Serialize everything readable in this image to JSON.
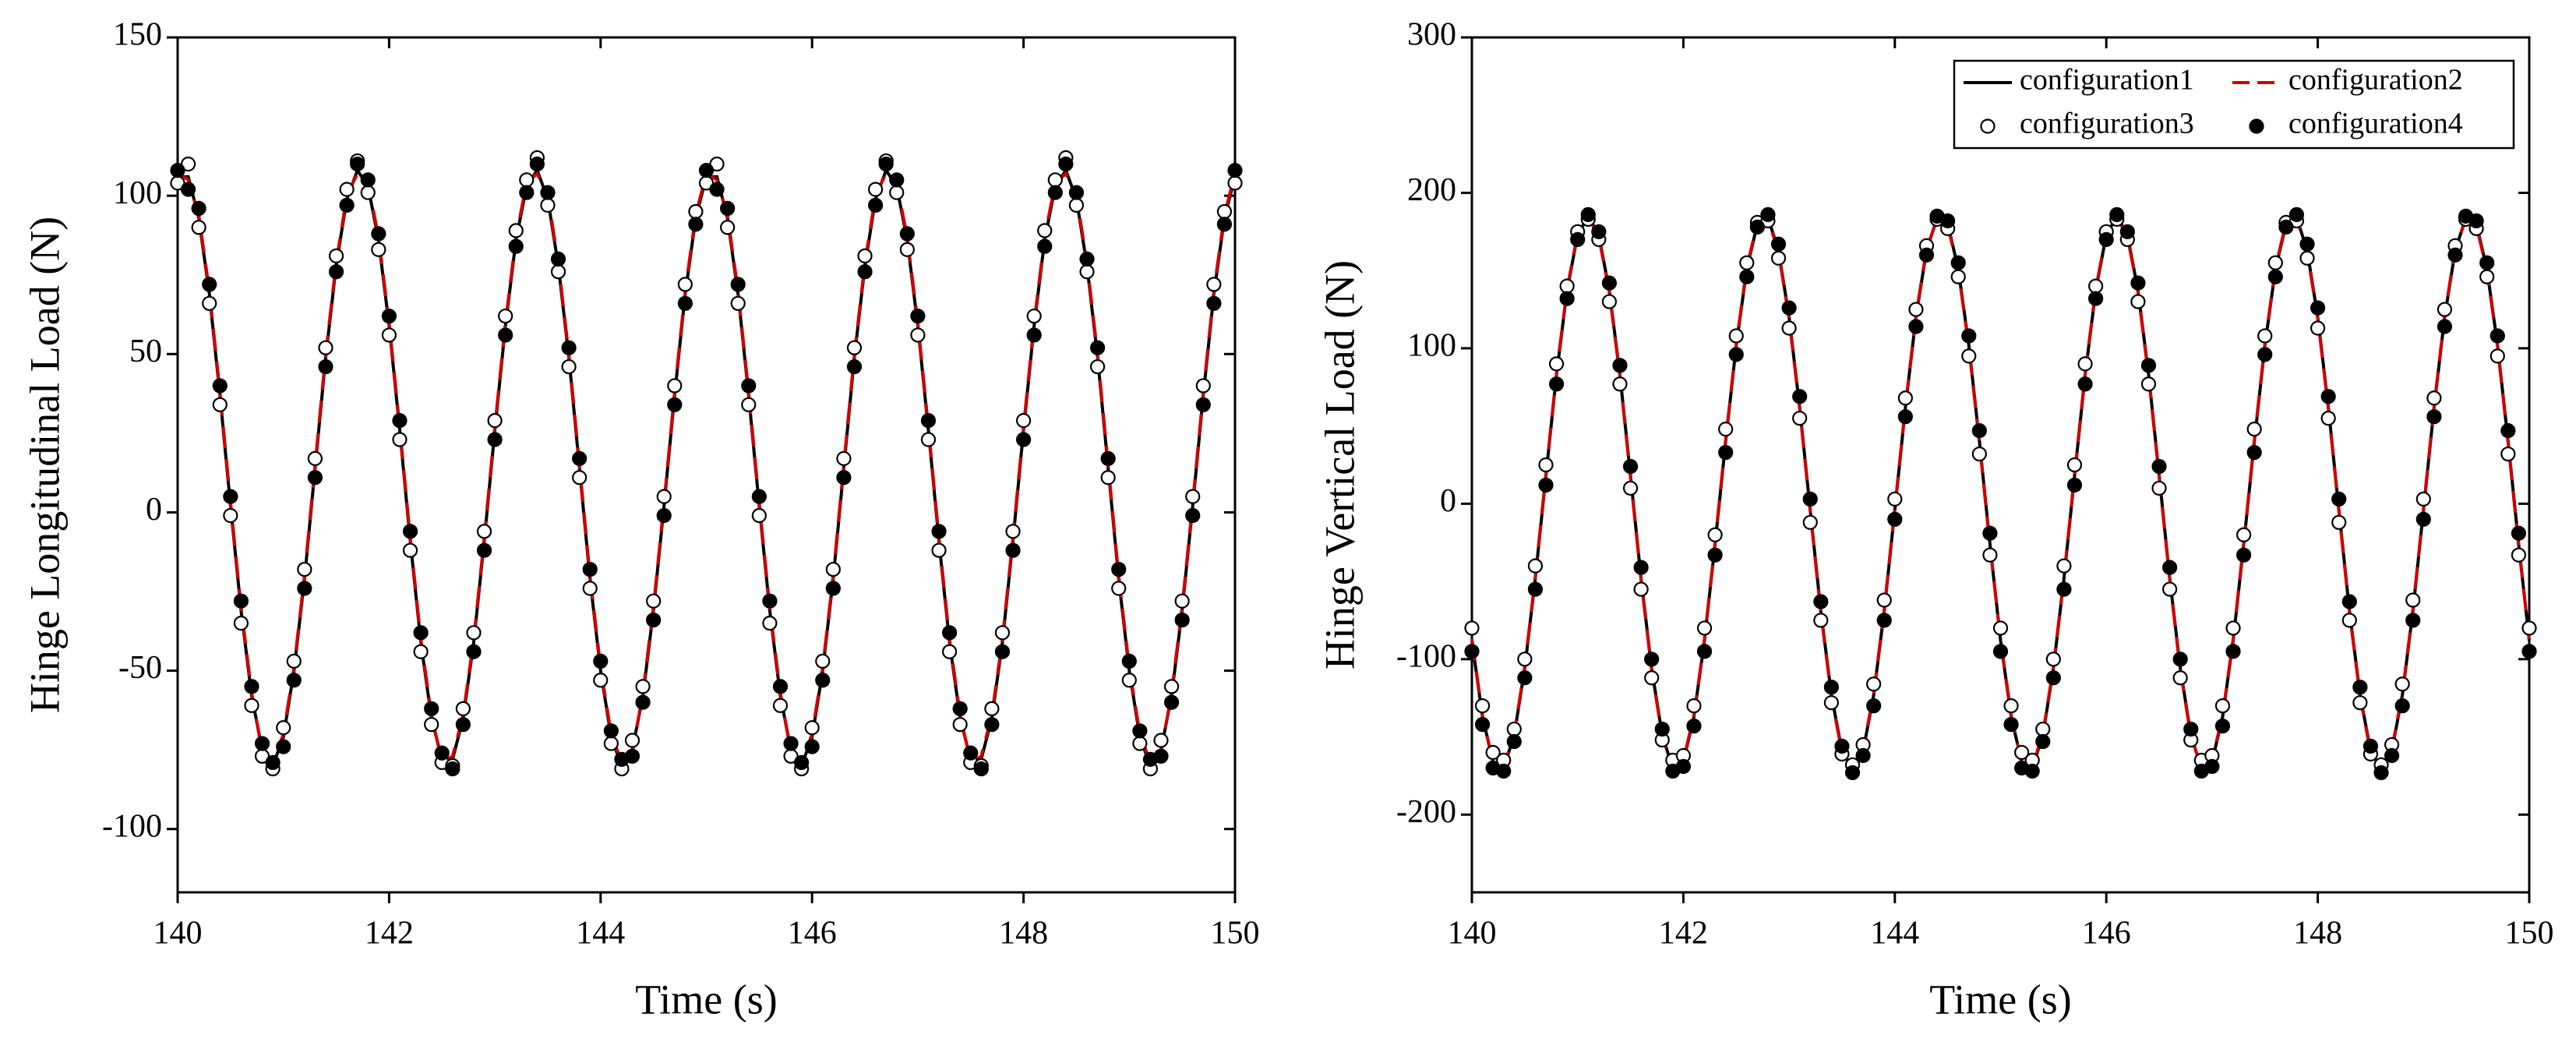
{
  "chart_data": [
    {
      "type": "line",
      "ylabel": "Hinge Longitudinal Load (N)",
      "xlabel": "Time (s)",
      "xlim": [
        140,
        150
      ],
      "xticks": [
        140,
        142,
        144,
        146,
        148,
        150
      ],
      "ylim": [
        -120,
        150
      ],
      "yticks": [
        -100,
        -50,
        0,
        50,
        100,
        150
      ],
      "x": [
        140.0,
        140.1,
        140.2,
        140.3,
        140.4,
        140.5,
        140.6,
        140.7,
        140.8,
        140.9,
        141.0,
        141.1,
        141.2,
        141.3,
        141.4,
        141.5,
        141.6,
        141.7,
        141.8,
        141.9,
        142.0,
        142.1,
        142.2,
        142.3,
        142.4,
        142.5,
        142.6,
        142.7,
        142.8,
        142.9,
        143.0,
        143.1,
        143.2,
        143.3,
        143.4,
        143.5,
        143.6,
        143.7,
        143.8,
        143.9,
        144.0,
        144.1,
        144.2,
        144.3,
        144.4,
        144.5,
        144.6,
        144.7,
        144.8,
        144.9,
        145.0,
        145.1,
        145.2,
        145.3,
        145.4,
        145.5,
        145.6,
        145.7,
        145.8,
        145.9,
        146.0,
        146.1,
        146.2,
        146.3,
        146.4,
        146.5,
        146.6,
        146.7,
        146.8,
        146.9,
        147.0,
        147.1,
        147.2,
        147.3,
        147.4,
        147.5,
        147.6,
        147.7,
        147.8,
        147.9,
        148.0,
        148.1,
        148.2,
        148.3,
        148.4,
        148.5,
        148.6,
        148.7,
        148.8,
        148.9,
        149.0,
        149.1,
        149.2,
        149.3,
        149.4,
        149.5,
        149.6,
        149.7,
        149.8,
        149.9,
        150.0
      ],
      "series": [
        {
          "color": "#000000",
          "style": "solid",
          "values": [
            106,
            106,
            93,
            69,
            37,
            2,
            -31,
            -58,
            -75,
            -80,
            -71,
            -50,
            -21,
            14,
            49,
            78,
            99,
            108,
            103,
            86,
            59,
            26,
            -9,
            -41,
            -65,
            -78,
            -78,
            -65,
            -41,
            -9,
            26,
            59,
            86,
            103,
            108,
            99,
            78,
            49,
            14,
            -21,
            -50,
            -71,
            -80,
            -75,
            -58,
            -31,
            2,
            37,
            69,
            93,
            106,
            106,
            93,
            69,
            37,
            2,
            -31,
            -58,
            -75,
            -80,
            -71,
            -50,
            -21,
            14,
            49,
            78,
            99,
            108,
            103,
            86,
            59,
            26,
            -9,
            -41,
            -65,
            -78,
            -78,
            -65,
            -41,
            -9,
            26,
            59,
            86,
            103,
            108,
            99,
            78,
            49,
            14,
            -21,
            -50,
            -71,
            -80,
            -75,
            -58,
            -31,
            2,
            37,
            69,
            93,
            106
          ]
        },
        {
          "color": "#d00000",
          "style": "dashed",
          "values": [
            107,
            105,
            94,
            70,
            38,
            3,
            -30,
            -57,
            -76,
            -79,
            -70,
            -49,
            -20,
            15,
            50,
            79,
            100,
            107,
            104,
            87,
            60,
            27,
            -8,
            -40,
            -64,
            -79,
            -77,
            -64,
            -40,
            -8,
            27,
            60,
            87,
            104,
            107,
            100,
            79,
            50,
            15,
            -20,
            -49,
            -70,
            -79,
            -76,
            -57,
            -30,
            3,
            38,
            70,
            94,
            107,
            105,
            94,
            70,
            38,
            3,
            -30,
            -57,
            -76,
            -79,
            -70,
            -49,
            -20,
            15,
            50,
            79,
            100,
            107,
            104,
            87,
            60,
            27,
            -8,
            -40,
            -64,
            -79,
            -77,
            -64,
            -40,
            -8,
            27,
            60,
            87,
            104,
            107,
            100,
            79,
            50,
            15,
            -20,
            -49,
            -70,
            -79,
            -76,
            -57,
            -30,
            3,
            38,
            70,
            94,
            107
          ]
        },
        {
          "color": "#000000",
          "style": "open-circle",
          "values": [
            104,
            110,
            90,
            66,
            34,
            -1,
            -35,
            -61,
            -77,
            -81,
            -68,
            -47,
            -18,
            17,
            52,
            81,
            102,
            111,
            101,
            83,
            56,
            23,
            -12,
            -44,
            -67,
            -79,
            -80,
            -62,
            -38,
            -6,
            29,
            62,
            89,
            105,
            112,
            97,
            76,
            46,
            11,
            -24,
            -53,
            -73,
            -81,
            -72,
            -55,
            -28,
            5,
            40,
            72,
            95,
            104,
            110,
            90,
            66,
            34,
            -1,
            -35,
            -61,
            -77,
            -81,
            -68,
            -47,
            -18,
            17,
            52,
            81,
            102,
            111,
            101,
            83,
            56,
            23,
            -12,
            -44,
            -67,
            -79,
            -80,
            -62,
            -38,
            -6,
            29,
            62,
            89,
            105,
            112,
            97,
            76,
            46,
            11,
            -24,
            -53,
            -73,
            -81,
            -72,
            -55,
            -28,
            5,
            40,
            72,
            95,
            104
          ]
        },
        {
          "color": "#000000",
          "style": "filled-circle",
          "values": [
            108,
            102,
            96,
            72,
            40,
            5,
            -28,
            -55,
            -73,
            -79,
            -74,
            -53,
            -24,
            11,
            46,
            76,
            97,
            110,
            105,
            88,
            62,
            29,
            -6,
            -38,
            -62,
            -76,
            -81,
            -67,
            -44,
            -12,
            23,
            56,
            84,
            101,
            110,
            101,
            80,
            52,
            17,
            -18,
            -47,
            -69,
            -78,
            -77,
            -60,
            -34,
            -1,
            34,
            66,
            91,
            108,
            102,
            96,
            72,
            40,
            5,
            -28,
            -55,
            -73,
            -79,
            -74,
            -53,
            -24,
            11,
            46,
            76,
            97,
            110,
            105,
            88,
            62,
            29,
            -6,
            -38,
            -62,
            -76,
            -81,
            -67,
            -44,
            -12,
            23,
            56,
            84,
            101,
            110,
            101,
            80,
            52,
            17,
            -18,
            -47,
            -69,
            -78,
            -77,
            -60,
            -34,
            -1,
            34,
            66,
            91,
            108
          ]
        }
      ]
    },
    {
      "type": "line",
      "ylabel": "Hinge Vertical Load (N)",
      "xlabel": "Time (s)",
      "xlim": [
        140,
        150
      ],
      "xticks": [
        140,
        142,
        144,
        146,
        148,
        150
      ],
      "ylim": [
        -250,
        300
      ],
      "yticks": [
        -200,
        -100,
        0,
        100,
        200,
        300
      ],
      "legend": "upper right",
      "x": [
        140.0,
        140.1,
        140.2,
        140.3,
        140.4,
        140.5,
        140.6,
        140.7,
        140.8,
        140.9,
        141.0,
        141.1,
        141.2,
        141.3,
        141.4,
        141.5,
        141.6,
        141.7,
        141.8,
        141.9,
        142.0,
        142.1,
        142.2,
        142.3,
        142.4,
        142.5,
        142.6,
        142.7,
        142.8,
        142.9,
        143.0,
        143.1,
        143.2,
        143.3,
        143.4,
        143.5,
        143.6,
        143.7,
        143.8,
        143.9,
        144.0,
        144.1,
        144.2,
        144.3,
        144.4,
        144.5,
        144.6,
        144.7,
        144.8,
        144.9,
        145.0,
        145.1,
        145.2,
        145.3,
        145.4,
        145.5,
        145.6,
        145.7,
        145.8,
        145.9,
        146.0,
        146.1,
        146.2,
        146.3,
        146.4,
        146.5,
        146.6,
        146.7,
        146.8,
        146.9,
        147.0,
        147.1,
        147.2,
        147.3,
        147.4,
        147.5,
        147.6,
        147.7,
        147.8,
        147.9,
        148.0,
        148.1,
        148.2,
        148.3,
        148.4,
        148.5,
        148.6,
        148.7,
        148.8,
        148.9,
        149.0,
        149.1,
        149.2,
        149.3,
        149.4,
        149.5,
        149.6,
        149.7,
        149.8,
        149.9,
        150.0
      ],
      "series": [
        {
          "name": "configuration1",
          "color": "#000000",
          "style": "solid",
          "values": [
            -88,
            -137,
            -166,
            -170,
            -149,
            -106,
            -48,
            18,
            83,
            137,
            173,
            185,
            173,
            137,
            83,
            18,
            -48,
            -106,
            -149,
            -170,
            -166,
            -137,
            -88,
            -26,
            40,
            102,
            151,
            180,
            184,
            163,
            120,
            62,
            -4,
            -69,
            -123,
            -159,
            -171,
            -159,
            -123,
            -69,
            -4,
            62,
            120,
            163,
            184,
            180,
            151,
            102,
            40,
            -26,
            -88,
            -137,
            -166,
            -170,
            -149,
            -106,
            -48,
            18,
            83,
            137,
            173,
            185,
            173,
            137,
            83,
            18,
            -48,
            -106,
            -149,
            -170,
            -166,
            -137,
            -88,
            -26,
            40,
            102,
            151,
            180,
            184,
            163,
            120,
            62,
            -4,
            -69,
            -123,
            -159,
            -171,
            -159,
            -123,
            -69,
            -4,
            62,
            120,
            163,
            184,
            180,
            151,
            102,
            40,
            -26,
            -88
          ]
        },
        {
          "name": "configuration2",
          "color": "#d00000",
          "style": "dashed",
          "values": [
            -87,
            -136,
            -167,
            -169,
            -148,
            -105,
            -47,
            19,
            84,
            138,
            174,
            184,
            172,
            136,
            82,
            17,
            -49,
            -107,
            -150,
            -169,
            -165,
            -136,
            -87,
            -25,
            41,
            103,
            152,
            181,
            183,
            162,
            119,
            61,
            -5,
            -70,
            -124,
            -160,
            -170,
            -158,
            -122,
            -68,
            -3,
            63,
            121,
            164,
            183,
            179,
            150,
            101,
            39,
            -27,
            -87,
            -136,
            -167,
            -169,
            -148,
            -105,
            -47,
            19,
            84,
            138,
            174,
            184,
            172,
            136,
            82,
            17,
            -49,
            -107,
            -150,
            -169,
            -165,
            -136,
            -87,
            -25,
            41,
            103,
            152,
            181,
            183,
            162,
            119,
            61,
            -5,
            -70,
            -124,
            -160,
            -170,
            -158,
            -122,
            -68,
            -3,
            63,
            121,
            164,
            183,
            179,
            150,
            101,
            39,
            -27,
            -87
          ]
        },
        {
          "name": "configuration3",
          "color": "#000000",
          "style": "open-circle",
          "values": [
            -80,
            -130,
            -160,
            -165,
            -145,
            -100,
            -40,
            25,
            90,
            140,
            175,
            183,
            170,
            130,
            77,
            10,
            -55,
            -112,
            -152,
            -165,
            -162,
            -130,
            -80,
            -20,
            48,
            108,
            155,
            181,
            182,
            158,
            113,
            55,
            -12,
            -75,
            -128,
            -161,
            -168,
            -155,
            -116,
            -62,
            3,
            68,
            125,
            166,
            183,
            177,
            146,
            95,
            32,
            -33,
            -80,
            -130,
            -160,
            -165,
            -145,
            -100,
            -40,
            25,
            90,
            140,
            175,
            183,
            170,
            130,
            77,
            10,
            -55,
            -112,
            -152,
            -165,
            -162,
            -130,
            -80,
            -20,
            48,
            108,
            155,
            181,
            182,
            158,
            113,
            55,
            -12,
            -75,
            -128,
            -161,
            -168,
            -155,
            -116,
            -62,
            3,
            68,
            125,
            166,
            183,
            177,
            146,
            95,
            32,
            -33,
            -80
          ]
        },
        {
          "name": "configuration4",
          "color": "#000000",
          "style": "filled-circle",
          "values": [
            -95,
            -142,
            -170,
            -172,
            -153,
            -112,
            -55,
            12,
            77,
            132,
            170,
            186,
            175,
            142,
            89,
            24,
            -41,
            -100,
            -145,
            -172,
            -169,
            -143,
            -95,
            -33,
            33,
            96,
            146,
            178,
            186,
            167,
            126,
            69,
            3,
            -63,
            -118,
            -156,
            -173,
            -162,
            -130,
            -75,
            -10,
            56,
            114,
            160,
            185,
            182,
            155,
            108,
            47,
            -19,
            -95,
            -142,
            -170,
            -172,
            -153,
            -112,
            -55,
            12,
            77,
            132,
            170,
            186,
            175,
            142,
            89,
            24,
            -41,
            -100,
            -145,
            -172,
            -169,
            -143,
            -95,
            -33,
            33,
            96,
            146,
            178,
            186,
            167,
            126,
            69,
            3,
            -63,
            -118,
            -156,
            -173,
            -162,
            -130,
            -75,
            -10,
            56,
            114,
            160,
            185,
            182,
            155,
            108,
            47,
            -19,
            -95
          ]
        }
      ]
    }
  ]
}
